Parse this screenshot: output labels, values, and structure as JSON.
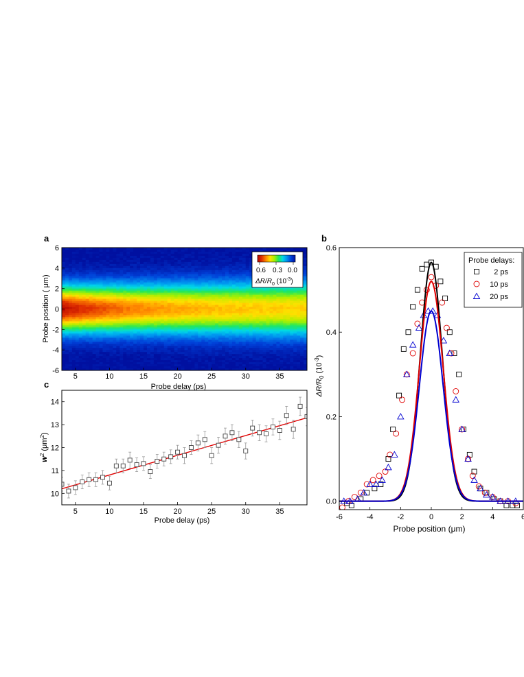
{
  "chart_data": [
    {
      "panel": "a",
      "type": "heatmap",
      "xlabel": "Probe delay (ps)",
      "ylabel": "Probe position ( μm)",
      "xlim": [
        3,
        39
      ],
      "ylim": [
        -6,
        6
      ],
      "x_ticks": [
        "5",
        "10",
        "15",
        "20",
        "25",
        "30",
        "35"
      ],
      "y_ticks": [
        "6",
        "4",
        "2",
        "0",
        "-2",
        "-4",
        "-6"
      ],
      "colorbar": {
        "label_main": "ΔR/R",
        "label_sub": "0",
        "label_unit": " (10",
        "label_exp": "-3",
        "label_close": ")",
        "ticks": [
          "0.6",
          "0.3",
          "0.0"
        ],
        "colormap": [
          "#b00000",
          "#e03000",
          "#ff8a00",
          "#ffe000",
          "#a8f000",
          "#22e85a",
          "#00d8e8",
          "#0090f0",
          "#0040d8",
          "#0010a0"
        ]
      },
      "profile": {
        "amplitude_initial": 0.58,
        "amplitude_final": 0.4,
        "decay_ps": 12,
        "width_sq_intercept_um2": 9.45,
        "width_sq_slope_um2_per_ps": 0.1
      }
    },
    {
      "panel": "c",
      "type": "scatter",
      "xlabel": "Probe delay (ps)",
      "ylabel_main": "w",
      "ylabel_exp": "2",
      "ylabel_unit_open": " (μm",
      "ylabel_unit_exp": "2",
      "ylabel_unit_close": ")",
      "xlim": [
        3,
        39
      ],
      "ylim": [
        9.5,
        14.5
      ],
      "x_ticks": [
        5,
        10,
        15,
        20,
        25,
        30,
        35
      ],
      "y_ticks": [
        10,
        11,
        12,
        13,
        14
      ],
      "points": {
        "x": [
          3,
          4,
          5,
          6,
          7,
          8,
          9,
          10,
          11,
          12,
          13,
          14,
          15,
          16,
          17,
          18,
          19,
          20,
          21,
          22,
          23,
          24,
          25,
          26,
          27,
          28,
          29,
          30,
          31,
          32,
          33,
          34,
          35,
          36,
          37,
          38,
          39
        ],
        "y": [
          10.4,
          10.1,
          10.25,
          10.5,
          10.6,
          10.6,
          10.7,
          10.45,
          11.2,
          11.2,
          11.45,
          11.25,
          11.3,
          10.95,
          11.4,
          11.5,
          11.6,
          11.8,
          11.65,
          12.0,
          12.2,
          12.35,
          11.65,
          12.1,
          12.5,
          12.65,
          12.35,
          11.85,
          12.85,
          12.65,
          12.6,
          12.9,
          12.75,
          13.4,
          12.8,
          13.8,
          13.35
        ],
        "err": [
          0.3,
          0.3,
          0.3,
          0.3,
          0.3,
          0.3,
          0.3,
          0.3,
          0.3,
          0.3,
          0.35,
          0.3,
          0.3,
          0.3,
          0.3,
          0.3,
          0.3,
          0.3,
          0.35,
          0.3,
          0.35,
          0.35,
          0.35,
          0.35,
          0.35,
          0.35,
          0.35,
          0.35,
          0.35,
          0.35,
          0.35,
          0.35,
          0.4,
          0.4,
          0.4,
          0.4,
          0.4
        ]
      },
      "fit_line": {
        "x": [
          3,
          39
        ],
        "y": [
          10.2,
          13.3
        ],
        "color": "#e00000"
      },
      "marker_color": "#444444",
      "error_color": "#999999"
    },
    {
      "panel": "b",
      "type": "line",
      "xlabel": "Probe position  (μm)",
      "ylabel_main": "ΔR/R",
      "ylabel_sub": "0",
      "ylabel_unit": " (10",
      "ylabel_exp": "-3",
      "ylabel_close": ")",
      "xlim": [
        -6,
        6
      ],
      "ylim": [
        -0.02,
        0.6
      ],
      "x_ticks": [
        -6,
        -4,
        -2,
        0,
        2,
        4,
        6
      ],
      "y_ticks": [
        "0.0",
        "0.2",
        "0.4",
        "0.6"
      ],
      "legend_title": "Probe delays:",
      "legend_position": "top-right",
      "series": [
        {
          "name": "2 ps",
          "marker": "square",
          "color": "#000000",
          "amplitude": 0.565,
          "width_um": 1.45,
          "points_x": [
            -5.5,
            -5.2,
            -4.6,
            -4.2,
            -3.7,
            -3.3,
            -2.8,
            -2.5,
            -2.1,
            -1.8,
            -1.5,
            -1.2,
            -0.9,
            -0.6,
            -0.3,
            0.0,
            0.3,
            0.6,
            0.9,
            1.2,
            1.5,
            1.8,
            2.1,
            2.5,
            2.8,
            3.2,
            3.6,
            4.1,
            4.5,
            4.9,
            5.3,
            5.6
          ],
          "points_y": [
            -0.005,
            -0.01,
            0.005,
            0.02,
            0.03,
            0.04,
            0.1,
            0.17,
            0.25,
            0.36,
            0.4,
            0.46,
            0.5,
            0.55,
            0.56,
            0.565,
            0.555,
            0.52,
            0.48,
            0.4,
            0.35,
            0.3,
            0.17,
            0.11,
            0.07,
            0.03,
            0.02,
            0.005,
            0.0,
            -0.01,
            -0.01,
            -0.01
          ]
        },
        {
          "name": "10 ps",
          "marker": "circle",
          "color": "#e00000",
          "amplitude": 0.52,
          "width_um": 1.55,
          "points_x": [
            -5.8,
            -5.4,
            -5.0,
            -4.6,
            -4.2,
            -3.8,
            -3.4,
            -3.0,
            -2.7,
            -2.3,
            -1.9,
            -1.6,
            -1.2,
            -0.9,
            -0.6,
            -0.3,
            0.0,
            0.3,
            0.7,
            1.0,
            1.3,
            1.6,
            2.0,
            2.4,
            2.7,
            3.1,
            3.5,
            4.0,
            4.5,
            5.0,
            5.5
          ],
          "points_y": [
            -0.015,
            0.0,
            0.01,
            0.02,
            0.04,
            0.05,
            0.06,
            0.07,
            0.11,
            0.16,
            0.24,
            0.3,
            0.35,
            0.42,
            0.47,
            0.5,
            0.53,
            0.51,
            0.47,
            0.41,
            0.35,
            0.26,
            0.17,
            0.1,
            0.06,
            0.035,
            0.02,
            0.01,
            0.0,
            0.0,
            -0.005
          ]
        },
        {
          "name": "20 ps",
          "marker": "triangle",
          "color": "#0000d0",
          "amplitude": 0.45,
          "width_um": 1.55,
          "points_x": [
            -5.7,
            -5.3,
            -4.8,
            -4.4,
            -4.0,
            -3.6,
            -3.2,
            -2.8,
            -2.4,
            -2.0,
            -1.6,
            -1.2,
            -0.8,
            -0.5,
            -0.2,
            0.1,
            0.4,
            0.8,
            1.2,
            1.6,
            2.0,
            2.4,
            2.8,
            3.2,
            3.6,
            4.0,
            4.5,
            5.0,
            5.5
          ],
          "points_y": [
            0.0,
            0.0,
            0.005,
            0.02,
            0.04,
            0.04,
            0.05,
            0.08,
            0.11,
            0.2,
            0.3,
            0.37,
            0.41,
            0.44,
            0.45,
            0.45,
            0.44,
            0.38,
            0.35,
            0.24,
            0.17,
            0.1,
            0.05,
            0.03,
            0.015,
            0.01,
            0.0,
            0.0,
            0.0
          ]
        }
      ]
    }
  ],
  "panel_letters": {
    "a": "a",
    "b": "b",
    "c": "c"
  }
}
